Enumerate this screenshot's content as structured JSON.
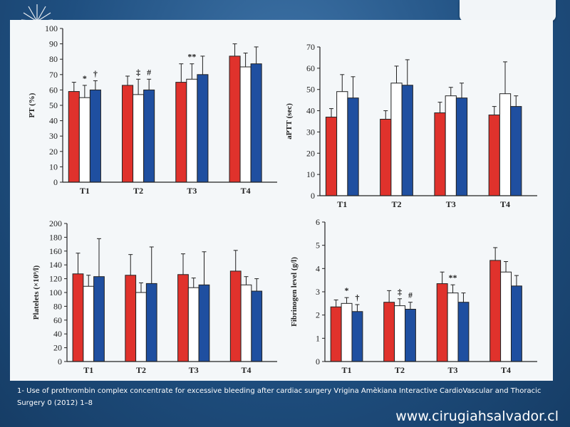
{
  "caption": "1-  Use of prothrombin complex concentrate for excessive bleeding after cardiac surgery Vrigina Amèkiana  Interactive CardioVascular and Thoracic Surgery 0 (2012) 1–8",
  "site_url": "www.cirugiahsalvador.cl",
  "colors": {
    "red": "#e0322c",
    "white": "#ffffff",
    "blue": "#1f4fa0"
  },
  "chart_data": [
    {
      "type": "bar",
      "ylabel": "PT (%)",
      "categories": [
        "T1",
        "T2",
        "T3",
        "T4"
      ],
      "ylim": [
        0,
        100
      ],
      "yticks": [
        0,
        10,
        20,
        30,
        40,
        50,
        60,
        70,
        80,
        90,
        100
      ],
      "series": [
        {
          "color": "red",
          "values": [
            59,
            63,
            65,
            82
          ],
          "errors": [
            6,
            6,
            12,
            8
          ]
        },
        {
          "color": "white",
          "values": [
            55,
            57,
            67,
            75
          ],
          "errors": [
            8,
            10,
            10,
            9
          ]
        },
        {
          "color": "blue",
          "values": [
            60,
            60,
            70,
            77
          ],
          "errors": [
            6,
            7,
            12,
            11
          ]
        }
      ],
      "annotations": [
        {
          "category": "T1",
          "series": 1,
          "text": "*"
        },
        {
          "category": "T1",
          "series": 2,
          "text": "†"
        },
        {
          "category": "T2",
          "series": 1,
          "text": "‡"
        },
        {
          "category": "T2",
          "series": 2,
          "text": "#"
        },
        {
          "category": "T3",
          "series": 1,
          "text": "**"
        }
      ]
    },
    {
      "type": "bar",
      "ylabel": "aPTT (sec)",
      "categories": [
        "T1",
        "T2",
        "T3",
        "T4"
      ],
      "ylim": [
        0,
        70
      ],
      "yticks": [
        0,
        10,
        20,
        30,
        40,
        50,
        60,
        70
      ],
      "series": [
        {
          "color": "red",
          "values": [
            37,
            36,
            39,
            38
          ],
          "errors": [
            4,
            4,
            5,
            4
          ]
        },
        {
          "color": "white",
          "values": [
            49,
            53,
            47,
            48
          ],
          "errors": [
            8,
            8,
            4,
            15
          ]
        },
        {
          "color": "blue",
          "values": [
            46,
            52,
            46,
            42
          ],
          "errors": [
            10,
            12,
            7,
            5
          ]
        }
      ],
      "annotations": []
    },
    {
      "type": "bar",
      "ylabel": "Platelets (×10⁹/l)",
      "categories": [
        "T1",
        "T2",
        "T3",
        "T4"
      ],
      "ylim": [
        0,
        200
      ],
      "yticks": [
        0,
        20,
        40,
        60,
        80,
        100,
        120,
        140,
        160,
        180,
        200
      ],
      "series": [
        {
          "color": "red",
          "values": [
            127,
            125,
            126,
            131
          ],
          "errors": [
            30,
            30,
            30,
            30
          ]
        },
        {
          "color": "white",
          "values": [
            109,
            100,
            107,
            111
          ],
          "errors": [
            16,
            14,
            14,
            12
          ]
        },
        {
          "color": "blue",
          "values": [
            123,
            113,
            111,
            102
          ],
          "errors": [
            55,
            53,
            48,
            18
          ]
        }
      ],
      "annotations": []
    },
    {
      "type": "bar",
      "ylabel": "Fibrinogen level (g/l)",
      "categories": [
        "T1",
        "T2",
        "T3",
        "T4"
      ],
      "ylim": [
        0,
        6
      ],
      "yticks": [
        0,
        1,
        2,
        3,
        4,
        5,
        6
      ],
      "series": [
        {
          "color": "red",
          "values": [
            2.35,
            2.55,
            3.35,
            4.35
          ],
          "errors": [
            0.3,
            0.5,
            0.5,
            0.55
          ]
        },
        {
          "color": "white",
          "values": [
            2.5,
            2.4,
            2.95,
            3.85
          ],
          "errors": [
            0.25,
            0.3,
            0.35,
            0.45
          ]
        },
        {
          "color": "blue",
          "values": [
            2.15,
            2.25,
            2.55,
            3.25
          ],
          "errors": [
            0.3,
            0.3,
            0.4,
            0.45
          ]
        }
      ],
      "annotations": [
        {
          "category": "T1",
          "series": 1,
          "text": "*"
        },
        {
          "category": "T1",
          "series": 2,
          "text": "†"
        },
        {
          "category": "T2",
          "series": 1,
          "text": "‡"
        },
        {
          "category": "T2",
          "series": 2,
          "text": "#"
        },
        {
          "category": "T3",
          "series": 1,
          "text": "**"
        }
      ]
    }
  ]
}
